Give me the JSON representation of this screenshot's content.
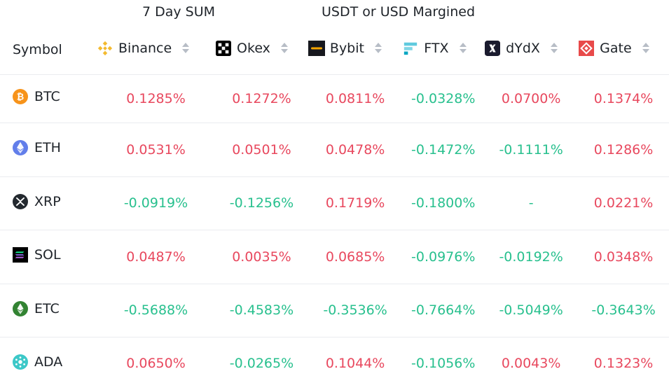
{
  "header": {
    "sum_label": "7 Day SUM",
    "margin_label": "USDT or USD Margined"
  },
  "table": {
    "symbol_header": "Symbol",
    "exchanges": [
      {
        "name": "Binance",
        "icon": "binance-icon",
        "color": "#f3ba2f"
      },
      {
        "name": "Okex",
        "icon": "okex-icon",
        "color": "#000000"
      },
      {
        "name": "Bybit",
        "icon": "bybit-icon",
        "color": "#17181e"
      },
      {
        "name": "FTX",
        "icon": "ftx-icon",
        "color": "#5fcade"
      },
      {
        "name": "dYdX",
        "icon": "dydx-icon",
        "color": "#1a1b2e"
      },
      {
        "name": "Gate",
        "icon": "gate-icon",
        "color": "#e84a4a"
      }
    ],
    "rows": [
      {
        "symbol": "BTC",
        "icon": "bitcoin-icon",
        "values": [
          "0.1285%",
          "0.1272%",
          "0.0811%",
          "-0.0328%",
          "0.0700%",
          "0.1374%"
        ]
      },
      {
        "symbol": "ETH",
        "icon": "ethereum-icon",
        "values": [
          "0.0531%",
          "0.0501%",
          "0.0478%",
          "-0.1472%",
          "-0.1111%",
          "0.1286%"
        ]
      },
      {
        "symbol": "XRP",
        "icon": "xrp-icon",
        "values": [
          "-0.0919%",
          "-0.1256%",
          "0.1719%",
          "-0.1800%",
          "-",
          "0.0221%"
        ]
      },
      {
        "symbol": "SOL",
        "icon": "solana-icon",
        "values": [
          "0.0487%",
          "0.0035%",
          "0.0685%",
          "-0.0976%",
          "-0.0192%",
          "0.0348%"
        ]
      },
      {
        "symbol": "ETC",
        "icon": "ethereum-classic-icon",
        "values": [
          "-0.5688%",
          "-0.4583%",
          "-0.3536%",
          "-0.7664%",
          "-0.5049%",
          "-0.3643%"
        ]
      },
      {
        "symbol": "ADA",
        "icon": "cardano-icon",
        "values": [
          "0.0650%",
          "-0.0265%",
          "0.1044%",
          "-0.1056%",
          "0.0043%",
          "0.1323%"
        ]
      }
    ]
  },
  "colors": {
    "positive": "#e8485e",
    "negative": "#28c08e"
  }
}
